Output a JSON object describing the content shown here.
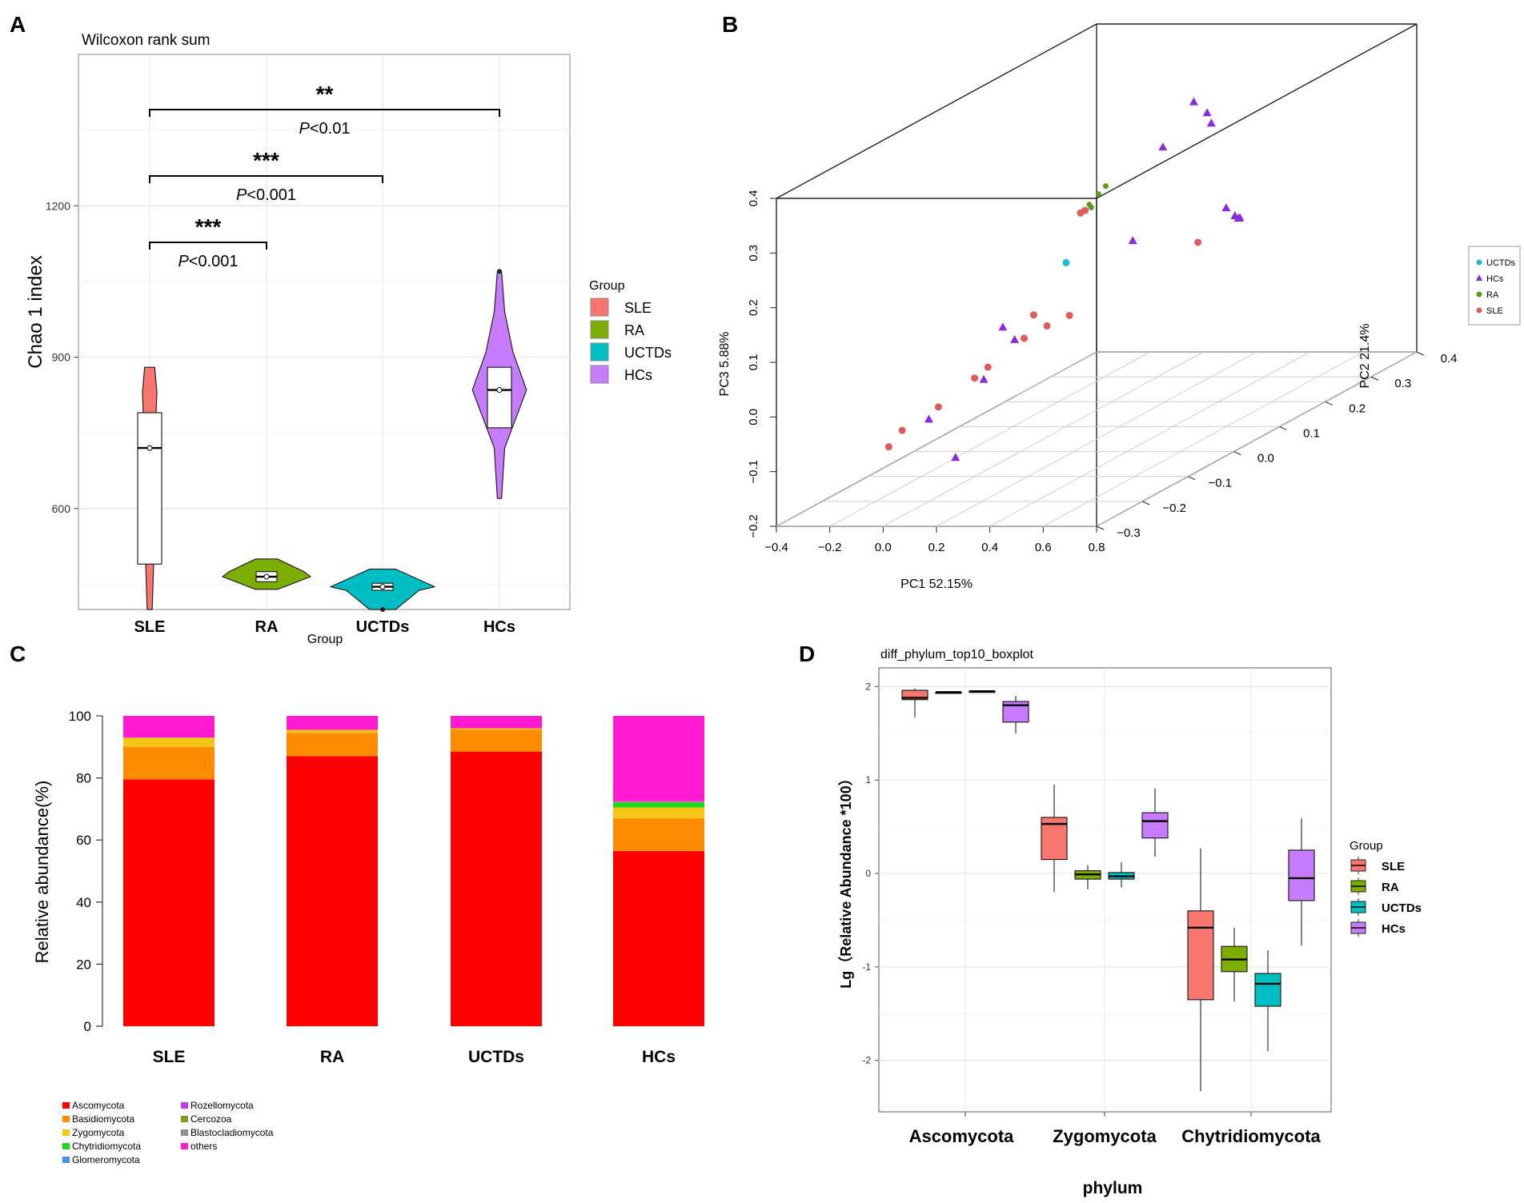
{
  "chart_data": [
    {
      "panel": "A",
      "type": "violin",
      "title": "Wilcoxon rank sum",
      "xlabel": "Group",
      "ylabel": "Chao 1 index",
      "categories": [
        "SLE",
        "RA",
        "UCTDs",
        "HCs"
      ],
      "yticks": [
        600,
        900,
        1200
      ],
      "ylim": [
        400,
        1500
      ],
      "colors": [
        "#f8766d",
        "#7cae00",
        "#00bfc4",
        "#c77cff"
      ],
      "groups": [
        {
          "name": "SLE",
          "min": 400,
          "q1": 490,
          "median": 720,
          "mean": 720,
          "q3": 790,
          "max": 880
        },
        {
          "name": "RA",
          "min": 440,
          "q1": 455,
          "median": 465,
          "mean": 465,
          "q3": 475,
          "max": 500
        },
        {
          "name": "UCTDs",
          "min": 400,
          "q1": 438,
          "median": 445,
          "mean": 445,
          "q3": 452,
          "max": 480
        },
        {
          "name": "HCs",
          "min": 620,
          "q1": 760,
          "median": 835,
          "mean": 835,
          "q3": 880,
          "max": 1070
        }
      ],
      "legend": {
        "title": "Group",
        "entries": [
          "SLE",
          "RA",
          "UCTDs",
          "HCs"
        ]
      },
      "comparisons": [
        {
          "from": "SLE",
          "to": "HCs",
          "stars": "**",
          "p": "<0.01"
        },
        {
          "from": "SLE",
          "to": "UCTDs",
          "stars": "***",
          "p": "<0.001"
        },
        {
          "from": "SLE",
          "to": "RA",
          "stars": "***",
          "p": "<0.001"
        }
      ],
      "p_label": "P"
    },
    {
      "panel": "B",
      "type": "scatter3d",
      "xlabel": "PC1 52.15%",
      "ylabel": "PC2 21.4%",
      "zlabel": "PC3 5.88%",
      "xticks": [
        "−0.4",
        "−0.2",
        "0.0",
        "0.2",
        "0.4",
        "0.6",
        "0.8"
      ],
      "yticks": [
        "−0.3",
        "−0.2",
        "−0.1",
        "0.0",
        "0.1",
        "0.2",
        "0.3",
        "0.4"
      ],
      "zticks": [
        "−0.2",
        "−0.1",
        "0.0",
        "0.1",
        "0.2",
        "0.3",
        "0.4"
      ],
      "xlim": [
        -0.4,
        0.8
      ],
      "ylim": [
        -0.3,
        0.4
      ],
      "zlim": [
        -0.2,
        0.4
      ],
      "legend": {
        "entries": [
          {
            "label": "UCTDs",
            "color": "#1bbcd0",
            "shape": "circle"
          },
          {
            "label": "HCs",
            "color": "#8a2be2",
            "shape": "triangle"
          },
          {
            "label": "RA",
            "color": "#5a9a1e",
            "shape": "circle"
          },
          {
            "label": "SLE",
            "color": "#e05a5a",
            "shape": "circle"
          }
        ]
      },
      "series": [
        {
          "name": "HCs",
          "points": [
            {
              "x": 0.05,
              "y": 0.35,
              "z": 0.28
            },
            {
              "x": 0.1,
              "y": 0.35,
              "z": 0.26
            },
            {
              "x": 0.15,
              "y": 0.33,
              "z": 0.25
            },
            {
              "x": 0.02,
              "y": 0.3,
              "z": 0.22
            },
            {
              "x": 0.6,
              "y": 0.1,
              "z": 0.2
            },
            {
              "x": 0.65,
              "y": 0.09,
              "z": 0.19
            },
            {
              "x": 0.68,
              "y": 0.08,
              "z": 0.19
            },
            {
              "x": 0.72,
              "y": 0.06,
              "z": 0.2
            },
            {
              "x": 0.25,
              "y": 0.1,
              "z": 0.14
            },
            {
              "x": 0.15,
              "y": -0.1,
              "z": 0.05
            },
            {
              "x": 0.12,
              "y": -0.15,
              "z": 0.0
            },
            {
              "x": 0.0,
              "y": -0.2,
              "z": -0.05
            },
            {
              "x": 0.02,
              "y": -0.05,
              "z": 0.05
            },
            {
              "x": 0.1,
              "y": -0.2,
              "z": -0.12
            }
          ]
        },
        {
          "name": "RA",
          "points": [
            {
              "x": -0.05,
              "y": 0.2,
              "z": 0.18
            },
            {
              "x": -0.05,
              "y": 0.18,
              "z": 0.17
            },
            {
              "x": -0.06,
              "y": 0.19,
              "z": 0.16
            },
            {
              "x": -0.04,
              "y": 0.21,
              "z": 0.19
            }
          ]
        },
        {
          "name": "UCTDs",
          "points": [
            {
              "x": 0.0,
              "y": 0.1,
              "z": 0.1
            }
          ]
        },
        {
          "name": "SLE",
          "points": [
            {
              "x": -0.1,
              "y": 0.2,
              "z": 0.15
            },
            {
              "x": -0.1,
              "y": 0.19,
              "z": 0.15
            },
            {
              "x": 0.58,
              "y": 0.05,
              "z": 0.16
            },
            {
              "x": 0.05,
              "y": 0.0,
              "z": 0.05
            },
            {
              "x": 0.1,
              "y": -0.05,
              "z": 0.03
            },
            {
              "x": 0.05,
              "y": -0.1,
              "z": 0.0
            },
            {
              "x": 0.0,
              "y": -0.1,
              "z": -0.02
            },
            {
              "x": -0.05,
              "y": -0.15,
              "z": -0.05
            },
            {
              "x": -0.1,
              "y": -0.2,
              "z": -0.07
            },
            {
              "x": -0.15,
              "y": -0.2,
              "z": -0.1
            },
            {
              "x": 0.1,
              "y": 0.0,
              "z": 0.03
            },
            {
              "x": 0.15,
              "y": 0.02,
              "z": 0.04
            }
          ]
        }
      ]
    },
    {
      "panel": "C",
      "type": "bar",
      "stacked": true,
      "ylabel": "Relative abundance(%)",
      "categories": [
        "SLE",
        "RA",
        "UCTDs",
        "HCs"
      ],
      "yticks": [
        0,
        20,
        40,
        60,
        80,
        100
      ],
      "ylim": [
        0,
        100
      ],
      "series": [
        {
          "name": "Ascomycota",
          "color": "#ff0000",
          "values": [
            79.5,
            87,
            88.5,
            56.5
          ]
        },
        {
          "name": "Basidiomycota",
          "color": "#ff8c00",
          "values": [
            10.5,
            7.5,
            7,
            10.5
          ]
        },
        {
          "name": "Zygomycota",
          "color": "#f5c518",
          "values": [
            3,
            1,
            0.5,
            3.5
          ]
        },
        {
          "name": "Chytridiomycota",
          "color": "#19d81c",
          "values": [
            0,
            0,
            0,
            1.5
          ]
        },
        {
          "name": "Glomeromycota",
          "color": "#4d8fe0",
          "values": [
            0,
            0,
            0,
            0
          ]
        },
        {
          "name": "Rozellomycota",
          "color": "#c040f0",
          "values": [
            0,
            0,
            0,
            0
          ]
        },
        {
          "name": "Cercozoa",
          "color": "#8a9a20",
          "values": [
            0,
            0,
            0,
            0
          ]
        },
        {
          "name": "Blastocladiomycota",
          "color": "#8f8f8f",
          "values": [
            0,
            0,
            0,
            0.5
          ]
        },
        {
          "name": "others",
          "color": "#ff19d0",
          "values": [
            7,
            4.5,
            4,
            27.5
          ]
        }
      ]
    },
    {
      "panel": "D",
      "type": "box",
      "title": "diff_phylum_top10_boxplot",
      "xlabel": "phylum",
      "ylabel": "Lg（Relative Abundance *100）",
      "categories": [
        "Ascomycota",
        "Zygomycota",
        "Chytridiomycota"
      ],
      "yticks": [
        -2,
        -1,
        0,
        1,
        2
      ],
      "ylim": [
        -2.55,
        2.2
      ],
      "legend": {
        "title": "Group",
        "entries": [
          "SLE",
          "RA",
          "UCTDs",
          "HCs"
        ]
      },
      "colors": [
        "#f8766d",
        "#7cae00",
        "#00bfc4",
        "#c77cff"
      ],
      "series": [
        {
          "name": "SLE",
          "boxes": [
            {
              "min": 1.67,
              "q1": 1.86,
              "median": 1.88,
              "q3": 1.96,
              "max": 1.98
            },
            {
              "min": -0.2,
              "q1": 0.15,
              "median": 0.53,
              "q3": 0.6,
              "max": 0.95
            },
            {
              "min": -2.33,
              "q1": -1.35,
              "median": -0.58,
              "q3": -0.4,
              "max": 0.27
            }
          ]
        },
        {
          "name": "RA",
          "boxes": [
            {
              "min": 1.94,
              "q1": 1.94,
              "median": 1.94,
              "q3": 1.94,
              "max": 1.94
            },
            {
              "min": -0.17,
              "q1": -0.06,
              "median": -0.01,
              "q3": 0.03,
              "max": 0.09
            },
            {
              "min": -1.37,
              "q1": -1.05,
              "median": -0.92,
              "q3": -0.78,
              "max": -0.58
            }
          ]
        },
        {
          "name": "UCTDs",
          "boxes": [
            {
              "min": 1.95,
              "q1": 1.95,
              "median": 1.95,
              "q3": 1.95,
              "max": 1.95
            },
            {
              "min": -0.15,
              "q1": -0.06,
              "median": -0.03,
              "q3": 0.01,
              "max": 0.12
            },
            {
              "min": -1.9,
              "q1": -1.42,
              "median": -1.18,
              "q3": -1.07,
              "max": -0.82
            }
          ]
        },
        {
          "name": "HCs",
          "boxes": [
            {
              "min": 1.5,
              "q1": 1.62,
              "median": 1.8,
              "q3": 1.84,
              "max": 1.9
            },
            {
              "min": 0.18,
              "q1": 0.38,
              "median": 0.56,
              "q3": 0.65,
              "max": 0.91
            },
            {
              "min": -0.77,
              "q1": -0.29,
              "median": -0.05,
              "q3": 0.25,
              "max": 0.59
            }
          ]
        }
      ]
    }
  ],
  "panel_labels": [
    "A",
    "B",
    "C",
    "D"
  ]
}
